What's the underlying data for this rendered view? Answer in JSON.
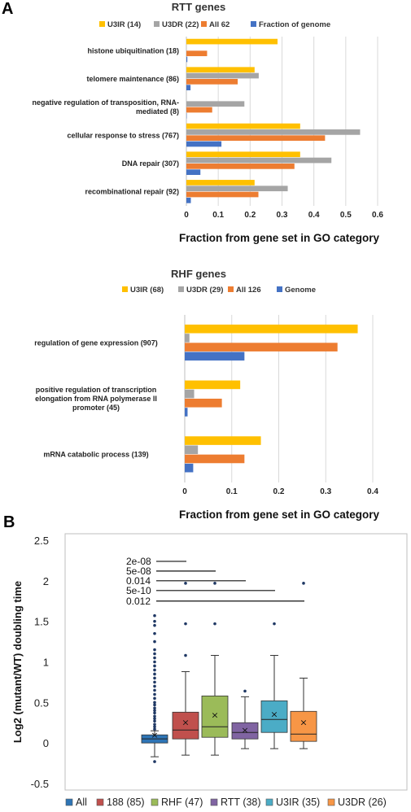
{
  "panels": {
    "a": "A",
    "b": "B"
  },
  "colors": {
    "u3ir": "#FFC000",
    "u3dr": "#A5A5A5",
    "all": "#ED7D31",
    "genome": "#4472C4",
    "box_all": "#2E75B6",
    "box_188": "#C0504D",
    "box_rhf": "#9BBB59",
    "box_rtt": "#8064A2",
    "box_u3ir": "#4BACC6",
    "box_u3dr": "#F79646"
  },
  "chart_data": [
    {
      "type": "bar",
      "orientation": "horizontal",
      "title": "RTT genes",
      "xlabel": "Fraction from gene set in GO category",
      "xlim": [
        0,
        0.6
      ],
      "xticks": [
        "0",
        "0.1",
        "0.2",
        "0.3",
        "0.4",
        "0.5",
        "0.6"
      ],
      "grid": true,
      "legend_position": "top",
      "categories": [
        "histone ubiquitination (18)",
        "telomere maintenance (86)",
        "negative regulation of transposition, RNA-mediated (8)",
        "cellular response to stress (767)",
        "DNA repair (307)",
        "recombinational repair (92)"
      ],
      "category_lines": [
        [
          "histone ubiquitination (18)"
        ],
        [
          "telomere maintenance (86)"
        ],
        [
          "negative regulation of transposition, RNA-",
          "mediated (8)"
        ],
        [
          "cellular response to stress (767)"
        ],
        [
          "DNA repair (307)"
        ],
        [
          "recombinational repair (92)"
        ]
      ],
      "series": [
        {
          "name": "U3IR (14)",
          "color": "#FFC000",
          "values": [
            0.286,
            0.214,
            0,
            0.357,
            0.357,
            0.214
          ]
        },
        {
          "name": "U3DR (22)",
          "color": "#A5A5A5",
          "values": [
            0,
            0.227,
            0.182,
            0.545,
            0.455,
            0.318
          ]
        },
        {
          "name": "All 62",
          "color": "#ED7D31",
          "values": [
            0.065,
            0.161,
            0.081,
            0.435,
            0.339,
            0.226
          ]
        },
        {
          "name": "Fraction of genome",
          "color": "#4472C4",
          "values": [
            0.003,
            0.013,
            0.001,
            0.11,
            0.044,
            0.014
          ]
        }
      ]
    },
    {
      "type": "bar",
      "orientation": "horizontal",
      "title": "RHF genes",
      "xlabel": "Fraction from gene set in GO category",
      "xlim": [
        0,
        0.4
      ],
      "xticks": [
        "0",
        "0.1",
        "0.2",
        "0.3",
        "0.4"
      ],
      "grid": true,
      "legend_position": "top",
      "categories": [
        "regulation of gene expression (907)",
        "positive regulation of transcription elongation from RNA polymerase II promoter (45)",
        "mRNA catabolic process (139)"
      ],
      "category_lines": [
        [
          "regulation of gene expression (907)"
        ],
        [
          "positive regulation of transcription",
          "elongation from RNA polymerase II",
          "promoter (45)"
        ],
        [
          "mRNA catabolic process (139)"
        ]
      ],
      "series": [
        {
          "name": "U3IR (68)",
          "color": "#FFC000",
          "values": [
            0.368,
            0.118,
            0.162
          ]
        },
        {
          "name": "U3DR (29)",
          "color": "#A5A5A5",
          "values": [
            0.01,
            0.02,
            0.028
          ]
        },
        {
          "name": "All 126",
          "color": "#ED7D31",
          "values": [
            0.325,
            0.079,
            0.127
          ]
        },
        {
          "name": "Genome",
          "color": "#4472C4",
          "values": [
            0.127,
            0.006,
            0.018
          ]
        }
      ]
    },
    {
      "type": "box",
      "ylabel": "Log2 (mutant/WT) doubling time",
      "ylim": [
        -0.5,
        2.5
      ],
      "yticks": [
        "-0.5",
        "0",
        "0.5",
        "1",
        "1.5",
        "2",
        "2.5"
      ],
      "grid": false,
      "legend_position": "bottom",
      "series": [
        {
          "name": "All",
          "color": "#2E75B6",
          "min": -0.17,
          "q1": 0.0,
          "median": 0.05,
          "q3": 0.1,
          "max": 0.15,
          "mean": 0.1,
          "outliers": [
            -0.23,
            0.17,
            0.2,
            0.23,
            0.27,
            0.3,
            0.33,
            0.37,
            0.4,
            0.43,
            0.47,
            0.5,
            0.55,
            0.6,
            0.65,
            0.7,
            0.75,
            0.8,
            0.85,
            0.9,
            0.95,
            1.0,
            1.05,
            1.1,
            1.15,
            1.25,
            1.35,
            1.45,
            1.5,
            1.57
          ]
        },
        {
          "name": "188 (85)",
          "color": "#C0504D",
          "min": -0.15,
          "q1": 0.05,
          "median": 0.16,
          "q3": 0.38,
          "max": 0.88,
          "mean": 0.26,
          "outliers": [
            1.08,
            1.47,
            1.97
          ]
        },
        {
          "name": "RHF (47)",
          "color": "#9BBB59",
          "min": -0.15,
          "q1": 0.07,
          "median": 0.2,
          "q3": 0.58,
          "max": 1.08,
          "mean": 0.35,
          "outliers": [
            1.47,
            1.97
          ]
        },
        {
          "name": "RTT (38)",
          "color": "#8064A2",
          "min": -0.07,
          "q1": 0.05,
          "median": 0.13,
          "q3": 0.25,
          "max": 0.57,
          "mean": 0.16,
          "outliers": [
            0.64
          ]
        },
        {
          "name": "U3IR (35)",
          "color": "#4BACC6",
          "min": -0.07,
          "q1": 0.13,
          "median": 0.29,
          "q3": 0.52,
          "max": 1.08,
          "mean": 0.36,
          "outliers": [
            1.47
          ]
        },
        {
          "name": "U3DR (26)",
          "color": "#F79646",
          "min": -0.07,
          "q1": 0.02,
          "median": 0.11,
          "q3": 0.39,
          "max": 0.8,
          "mean": 0.26,
          "outliers": [
            1.97
          ]
        }
      ],
      "comparisons": [
        {
          "label": "2e-08",
          "y": 2.24,
          "from": 0,
          "to": 1
        },
        {
          "label": "5e-08",
          "y": 2.12,
          "from": 0,
          "to": 2
        },
        {
          "label": "0.014",
          "y": 2.0,
          "from": 0,
          "to": 3
        },
        {
          "label": "5e-10",
          "y": 1.88,
          "from": 0,
          "to": 4
        },
        {
          "label": "0.012",
          "y": 1.75,
          "from": 0,
          "to": 5
        }
      ]
    }
  ]
}
